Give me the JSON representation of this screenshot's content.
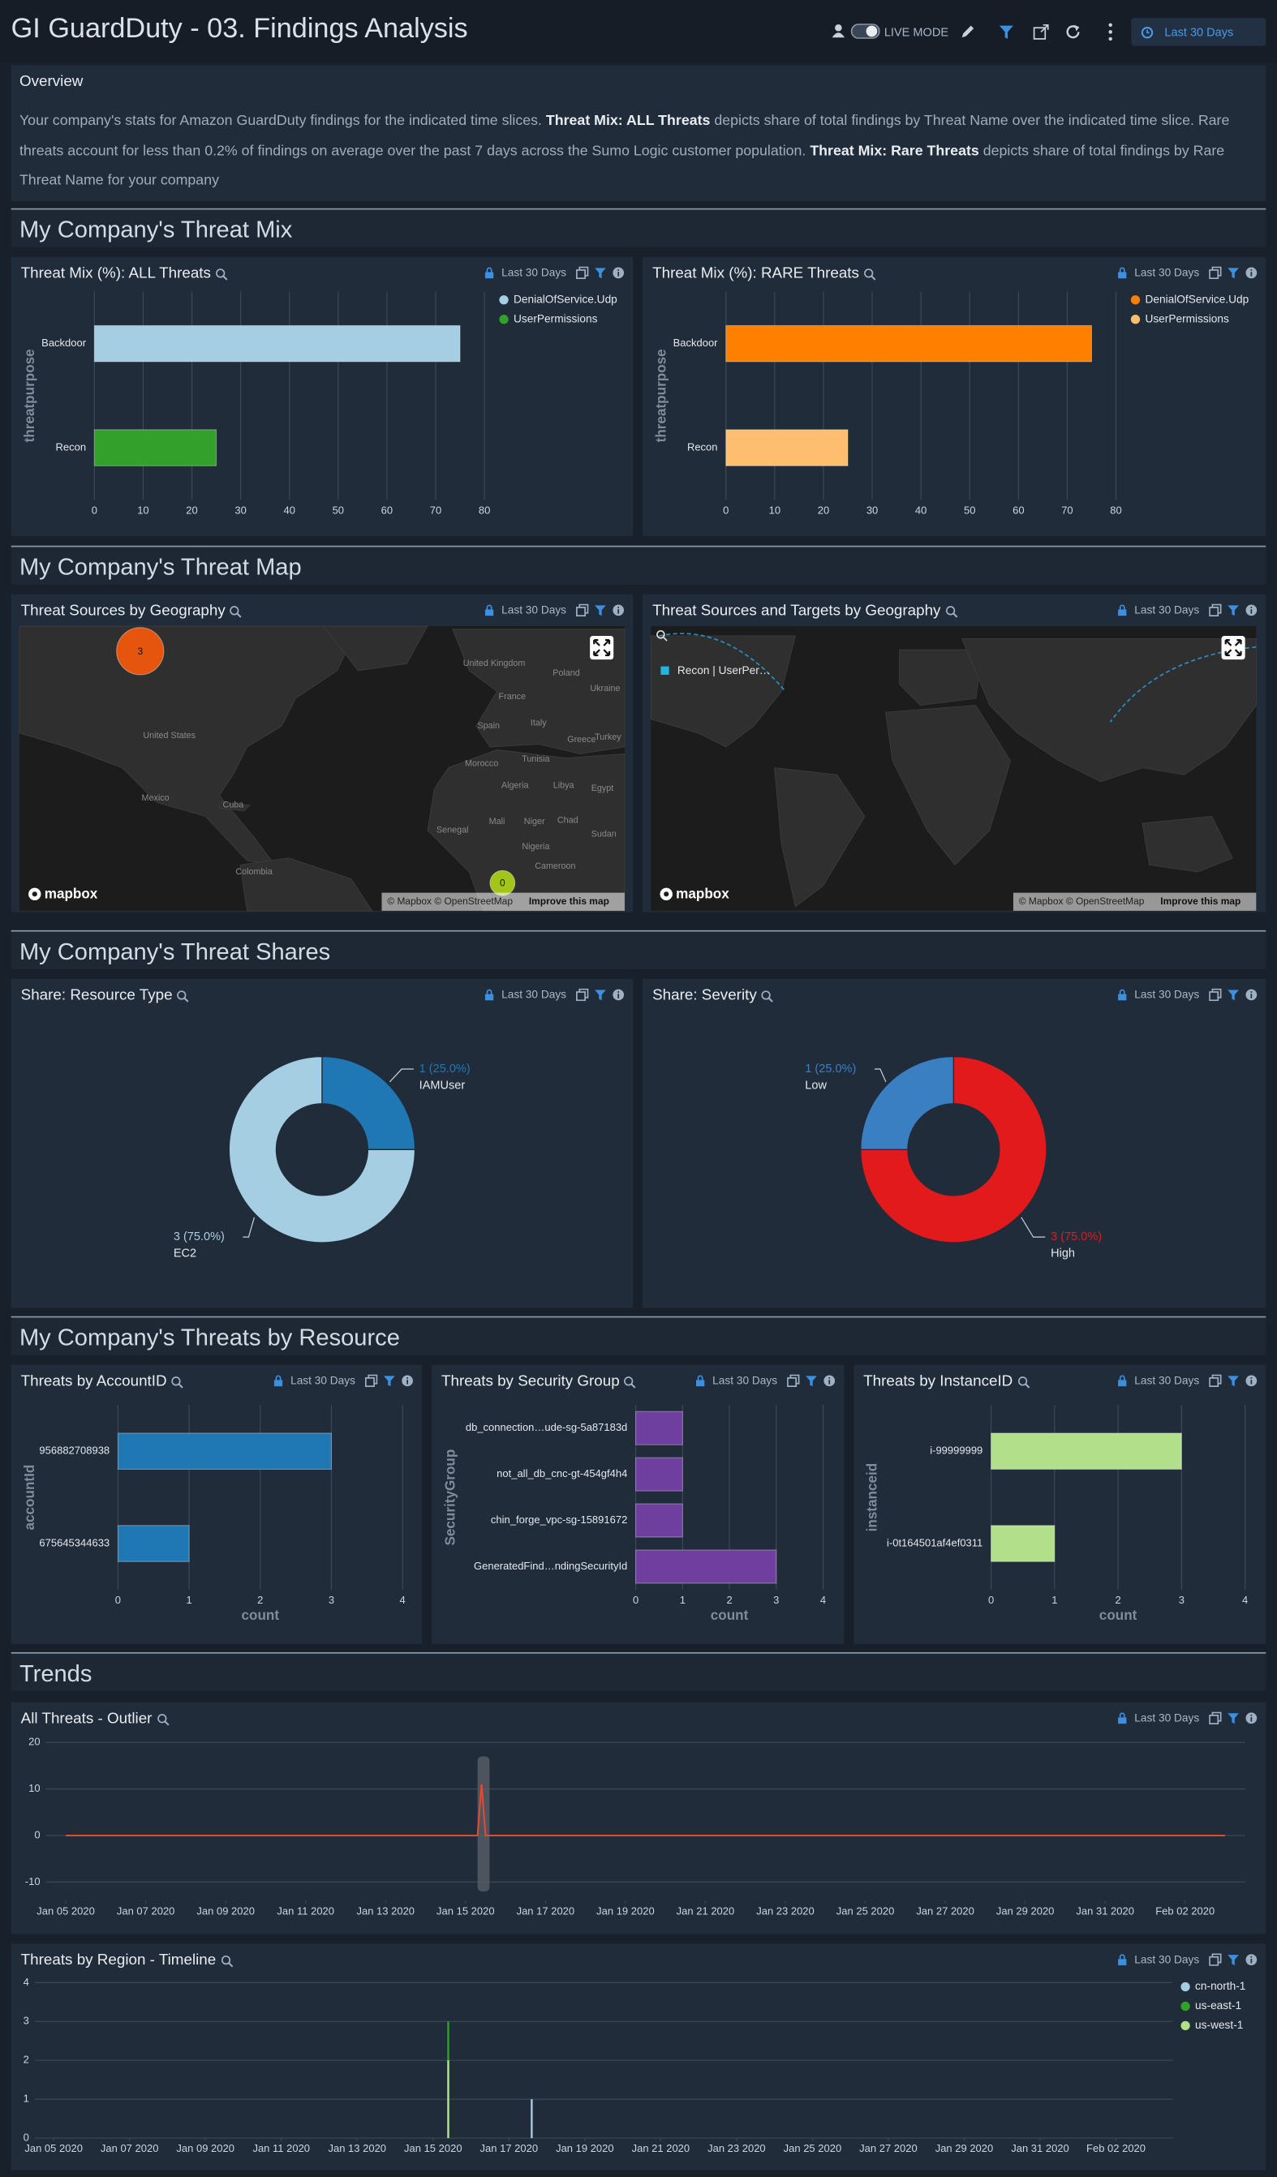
{
  "header": {
    "title": "GI GuardDuty - 03. Findings Analysis",
    "live_mode": "LIVE MODE",
    "time_range": "Last 30 Days"
  },
  "overview": {
    "title": "Overview",
    "text": [
      {
        "text": "Your company's stats for Amazon GuardDuty findings for the indicated time slices. ",
        "bold": false
      },
      {
        "text": "Threat Mix: ALL Threats",
        "bold": true
      },
      {
        "text": " depicts share of total findings by Threat Name over the indicated time slice. Rare threats account for less than 0.2% of findings on average over the past 7 days across the Sumo Logic customer population. ",
        "bold": false
      },
      {
        "text": "Threat Mix: Rare Threats",
        "bold": true
      },
      {
        "text": " depicts share of total findings by Rare Threat Name for your company",
        "bold": false
      }
    ]
  },
  "sections": [
    "My Company's Threat Mix",
    "My Company's Threat Map",
    "My Company's Threat Shares",
    "My Company's Threats by Resource",
    "Trends"
  ],
  "panels": [
    {
      "title": "Threat Mix (%): ALL Threats",
      "time_range": "Last 30 Days",
      "chart_data": {
        "type": "hbar",
        "categories": [
          "Backdoor",
          "Recon"
        ],
        "series": [
          {
            "name": "DenialOfService.Udp",
            "color": "#a6cee3",
            "values": [
              75,
              null
            ]
          },
          {
            "name": "UserPermissions",
            "color": "#33a02c",
            "values": [
              null,
              25
            ]
          }
        ],
        "ylabel": "threatpurpose",
        "xlim": [
          0,
          80
        ],
        "xticks": [
          0,
          10,
          20,
          30,
          40,
          50,
          60,
          70,
          80
        ],
        "grid": true,
        "legend": "top-right"
      }
    },
    {
      "title": "Threat Mix (%): RARE Threats",
      "time_range": "Last 30 Days",
      "chart_data": {
        "type": "hbar",
        "categories": [
          "Backdoor",
          "Recon"
        ],
        "series": [
          {
            "name": "DenialOfService.Udp",
            "color": "#ff7f00",
            "values": [
              75,
              null
            ]
          },
          {
            "name": "UserPermissions",
            "color": "#fdbf6f",
            "values": [
              null,
              25
            ]
          }
        ],
        "ylabel": "threatpurpose",
        "xlim": [
          0,
          80
        ],
        "xticks": [
          0,
          10,
          20,
          30,
          40,
          50,
          60,
          70,
          80
        ],
        "grid": true,
        "legend": "top-right"
      }
    },
    {
      "title": "Threat Sources by Geography",
      "time_range": "Last 30 Days",
      "map": {
        "labels": [
          "United Kingdom",
          "Poland",
          "Ukraine",
          "France",
          "Spain",
          "Italy",
          "Greece",
          "Turkey",
          "United States",
          "Morocco",
          "Tunisia",
          "Algeria",
          "Libya",
          "Egypt",
          "Mexico",
          "Cuba",
          "Mali",
          "Niger",
          "Chad",
          "Sudan",
          "Senegal",
          "Nigeria",
          "Colombia",
          "Cameroon"
        ],
        "bubbles": [
          {
            "value": 3,
            "color": "#e6550d"
          },
          {
            "value": 0,
            "color": "#a3c41a"
          }
        ],
        "logo": "mapbox",
        "attribution": "© Mapbox © OpenStreetMap",
        "improve": "Improve this map"
      }
    },
    {
      "title": "Threat Sources and Targets by Geography",
      "time_range": "Last 30 Days",
      "map": {
        "legend": "Recon | UserPer…",
        "legend_color": "#1fb6e0",
        "logo": "mapbox",
        "attribution": "© Mapbox © OpenStreetMap",
        "improve": "Improve this map"
      }
    },
    {
      "title": "Share: Resource Type",
      "time_range": "Last 30 Days",
      "chart_data": {
        "type": "donut",
        "categories": [
          "IAMUser",
          "EC2"
        ],
        "values": [
          1,
          3
        ],
        "value_labels": [
          "1 (25.0%)",
          "3 (75.0%)"
        ],
        "colors": [
          "#1f78b4",
          "#a6cee3"
        ]
      }
    },
    {
      "title": "Share: Severity",
      "time_range": "Last 30 Days",
      "chart_data": {
        "type": "donut",
        "categories": [
          "High",
          "Low"
        ],
        "values": [
          3,
          1
        ],
        "value_labels": [
          "3 (75.0%)",
          "1 (25.0%)"
        ],
        "colors": [
          "#e31a1c",
          "#3a7fc1"
        ]
      }
    },
    {
      "title": "Threats by AccountID",
      "time_range": "Last 30 Days",
      "chart_data": {
        "type": "hbar",
        "categories": [
          "956882708938",
          "675645344633"
        ],
        "values": [
          3,
          1
        ],
        "color": "#1f78b4",
        "xlabel": "count",
        "ylabel": "accountId",
        "xlim": [
          0,
          4
        ],
        "xticks": [
          0,
          1,
          2,
          3,
          4
        ],
        "grid": true
      }
    },
    {
      "title": "Threats by Security Group",
      "time_range": "Last 30 Days",
      "chart_data": {
        "type": "hbar",
        "categories": [
          "db_connection…ude-sg-5a87183d",
          "not_all_db_cnc-gt-454gf4h4",
          "chin_forge_vpc-sg-15891672",
          "GeneratedFind…ndingSecurityId"
        ],
        "values": [
          1,
          1,
          1,
          3
        ],
        "color": "#6f3fa0",
        "xlabel": "count",
        "ylabel": "SecurityGroup",
        "xlim": [
          0,
          4
        ],
        "xticks": [
          0,
          1,
          2,
          3,
          4
        ],
        "grid": true
      }
    },
    {
      "title": "Threats by InstanceID",
      "time_range": "Last 30 Days",
      "chart_data": {
        "type": "hbar",
        "categories": [
          "i-99999999",
          "i-0t164501af4ef0311"
        ],
        "values": [
          3,
          1
        ],
        "color": "#b2df8a",
        "xlabel": "count",
        "ylabel": "instanceid",
        "xlim": [
          0,
          4
        ],
        "xticks": [
          0,
          1,
          2,
          3,
          4
        ],
        "grid": true
      }
    },
    {
      "title": "All Threats - Outlier",
      "time_range": "Last 30 Days",
      "chart_data": {
        "type": "line",
        "x": [
          0,
          1,
          2,
          3,
          4,
          5,
          6,
          7,
          8,
          9,
          10,
          10.3,
          10.4,
          10.5,
          11,
          12,
          13,
          14,
          15,
          16,
          17,
          18,
          19,
          20,
          21,
          22,
          23,
          24,
          25,
          26,
          27,
          28,
          29
        ],
        "values": [
          0,
          0,
          0,
          0,
          0,
          0,
          0,
          0,
          0,
          0,
          0,
          0,
          11,
          0,
          0,
          0,
          0,
          0,
          0,
          0,
          0,
          0,
          0,
          0,
          0,
          0,
          0,
          0,
          0,
          0,
          0,
          0,
          0
        ],
        "color": "#e34a33",
        "band": {
          "x": [
            10.3,
            10.6
          ],
          "y": [
            -12,
            17
          ],
          "color": "#5a5f66"
        },
        "xlim": [
          -0.5,
          29.5
        ],
        "ylim": [
          -14,
          20
        ],
        "yticks": [
          -10,
          0,
          10,
          20
        ],
        "xticks": [
          {
            "value": 0,
            "label": "Jan 05 2020"
          },
          {
            "value": 2,
            "label": "Jan 07 2020"
          },
          {
            "value": 4,
            "label": "Jan 09 2020"
          },
          {
            "value": 6,
            "label": "Jan 11 2020"
          },
          {
            "value": 8,
            "label": "Jan 13 2020"
          },
          {
            "value": 10,
            "label": "Jan 15 2020"
          },
          {
            "value": 12,
            "label": "Jan 17 2020"
          },
          {
            "value": 14,
            "label": "Jan 19 2020"
          },
          {
            "value": 16,
            "label": "Jan 21 2020"
          },
          {
            "value": 18,
            "label": "Jan 23 2020"
          },
          {
            "value": 20,
            "label": "Jan 25 2020"
          },
          {
            "value": 22,
            "label": "Jan 27 2020"
          },
          {
            "value": 24,
            "label": "Jan 29 2020"
          },
          {
            "value": 26,
            "label": "Jan 31 2020"
          },
          {
            "value": 28,
            "label": "Feb 02 2020"
          }
        ],
        "grid": true
      }
    },
    {
      "title": "Threats by Region - Timeline",
      "time_range": "Last 30 Days",
      "chart_data": {
        "type": "column",
        "series": [
          {
            "name": "cn-north-1",
            "color": "#a6cee3",
            "x": [
              12.6
            ],
            "values": [
              1
            ]
          },
          {
            "name": "us-east-1",
            "color": "#33a02c",
            "x": [
              10.4
            ],
            "values": [
              3
            ]
          },
          {
            "name": "us-west-1",
            "color": "#b2df8a",
            "x": [
              10.4
            ],
            "values": [
              2
            ]
          }
        ],
        "xlim": [
          -0.5,
          29.5
        ],
        "ylim": [
          0,
          4
        ],
        "yticks": [
          0,
          1,
          2,
          3,
          4
        ],
        "xticks": [
          {
            "value": 0,
            "label": "Jan 05 2020"
          },
          {
            "value": 2,
            "label": "Jan 07 2020"
          },
          {
            "value": 4,
            "label": "Jan 09 2020"
          },
          {
            "value": 6,
            "label": "Jan 11 2020"
          },
          {
            "value": 8,
            "label": "Jan 13 2020"
          },
          {
            "value": 10,
            "label": "Jan 15 2020"
          },
          {
            "value": 12,
            "label": "Jan 17 2020"
          },
          {
            "value": 14,
            "label": "Jan 19 2020"
          },
          {
            "value": 16,
            "label": "Jan 21 2020"
          },
          {
            "value": 18,
            "label": "Jan 23 2020"
          },
          {
            "value": 20,
            "label": "Jan 25 2020"
          },
          {
            "value": 22,
            "label": "Jan 27 2020"
          },
          {
            "value": 24,
            "label": "Jan 29 2020"
          },
          {
            "value": 26,
            "label": "Jan 31 2020"
          },
          {
            "value": 28,
            "label": "Feb 02 2020"
          }
        ],
        "grid": true,
        "legend": "top-right"
      }
    }
  ]
}
